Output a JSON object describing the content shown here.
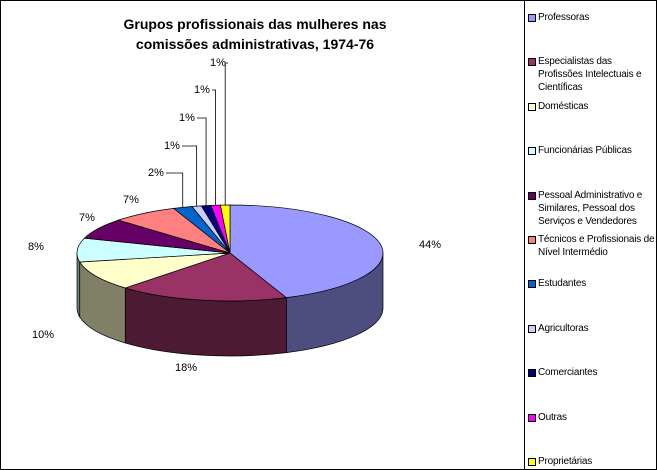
{
  "chart_data": {
    "type": "pie3d",
    "title": "Grupos profissionais das mulheres nas comissões administrativas, 1974-76",
    "categories": [
      "Professoras",
      "Especialistas das Profissões Intelectuais e Científicas",
      "Domésticas",
      "Funcionárias Públicas",
      "Pessoal Administrativo e Similares, Pessoal dos Serviços e Vendedores",
      "Técnicos e Profissionais de Nível Intermédio",
      "Estudantes",
      "Agricultoras",
      "Comerciantes",
      "Outras",
      "Proprietárias"
    ],
    "values": [
      44,
      18,
      10,
      8,
      7,
      7,
      2,
      1,
      1,
      1,
      1
    ],
    "value_labels": [
      "44%",
      "18%",
      "10%",
      "8%",
      "7%",
      "7%",
      "2%",
      "1%",
      "1%",
      "1%",
      "1%"
    ],
    "colors": [
      "#9999ff",
      "#993366",
      "#ffffcc",
      "#ccffff",
      "#660066",
      "#ff8080",
      "#0066cc",
      "#ccccff",
      "#000080",
      "#ff00ff",
      "#ffff00"
    ],
    "legend": "right"
  }
}
